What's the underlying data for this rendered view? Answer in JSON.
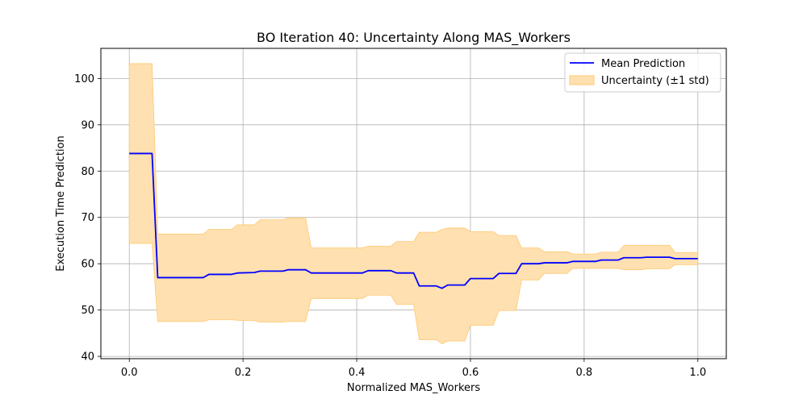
{
  "chart_data": {
    "type": "line",
    "title": "BO Iteration 40: Uncertainty Along MAS_Workers",
    "xlabel": "Normalized MAS_Workers",
    "ylabel": "Execution Time Prediction",
    "xlim": [
      -0.05,
      1.05
    ],
    "ylim": [
      39.5,
      106.5
    ],
    "xticks": [
      0.0,
      0.2,
      0.4,
      0.6,
      0.8,
      1.0
    ],
    "xtick_labels": [
      "0.0",
      "0.2",
      "0.4",
      "0.6",
      "0.8",
      "1.0"
    ],
    "yticks": [
      40,
      50,
      60,
      70,
      80,
      90,
      100
    ],
    "ytick_labels": [
      "40",
      "50",
      "60",
      "70",
      "80",
      "90",
      "100"
    ],
    "grid": true,
    "legend_position": "top-right",
    "colors": {
      "mean": "#0000ff",
      "band_fill": "#ffe0b0",
      "band_edge": "#ffc870",
      "grid": "#b0b0b0"
    },
    "series": [
      {
        "name": "Mean Prediction",
        "kind": "line"
      },
      {
        "name": "Uncertainty (±1 std)",
        "kind": "band"
      }
    ],
    "x": [
      0.0,
      0.04,
      0.05,
      0.13,
      0.14,
      0.18,
      0.19,
      0.22,
      0.23,
      0.27,
      0.28,
      0.31,
      0.32,
      0.41,
      0.42,
      0.46,
      0.47,
      0.5,
      0.51,
      0.54,
      0.55,
      0.56,
      0.59,
      0.6,
      0.64,
      0.65,
      0.68,
      0.69,
      0.72,
      0.73,
      0.77,
      0.78,
      0.82,
      0.83,
      0.86,
      0.87,
      0.9,
      0.91,
      0.95,
      0.96,
      1.0
    ],
    "mean": [
      83.8,
      83.8,
      57.0,
      57.0,
      57.7,
      57.7,
      58.0,
      58.1,
      58.4,
      58.4,
      58.7,
      58.7,
      58.0,
      58.0,
      58.5,
      58.5,
      58.0,
      58.0,
      55.2,
      55.2,
      54.7,
      55.4,
      55.4,
      56.8,
      56.8,
      57.9,
      57.9,
      60.0,
      60.0,
      60.2,
      60.2,
      60.5,
      60.5,
      60.8,
      60.8,
      61.3,
      61.3,
      61.4,
      61.4,
      61.1,
      61.1
    ],
    "upper": [
      103.2,
      103.2,
      66.4,
      66.4,
      67.4,
      67.4,
      68.4,
      68.4,
      69.5,
      69.5,
      69.9,
      69.9,
      63.4,
      63.4,
      63.8,
      63.8,
      64.8,
      64.8,
      66.8,
      66.8,
      67.4,
      67.7,
      67.7,
      66.9,
      66.9,
      66.1,
      66.1,
      63.4,
      63.4,
      62.6,
      62.6,
      62.1,
      62.1,
      62.5,
      62.5,
      64.0,
      64.0,
      64.0,
      64.0,
      62.4,
      62.4
    ],
    "lower": [
      64.4,
      64.4,
      47.5,
      47.5,
      47.9,
      47.9,
      47.8,
      47.7,
      47.4,
      47.4,
      47.5,
      47.5,
      52.5,
      52.5,
      53.2,
      53.2,
      51.2,
      51.2,
      43.6,
      43.6,
      42.7,
      43.3,
      43.3,
      46.7,
      46.7,
      49.9,
      49.9,
      56.5,
      56.5,
      57.9,
      57.9,
      59.0,
      59.0,
      59.0,
      59.0,
      58.7,
      58.7,
      58.9,
      58.9,
      59.8,
      59.8
    ]
  }
}
